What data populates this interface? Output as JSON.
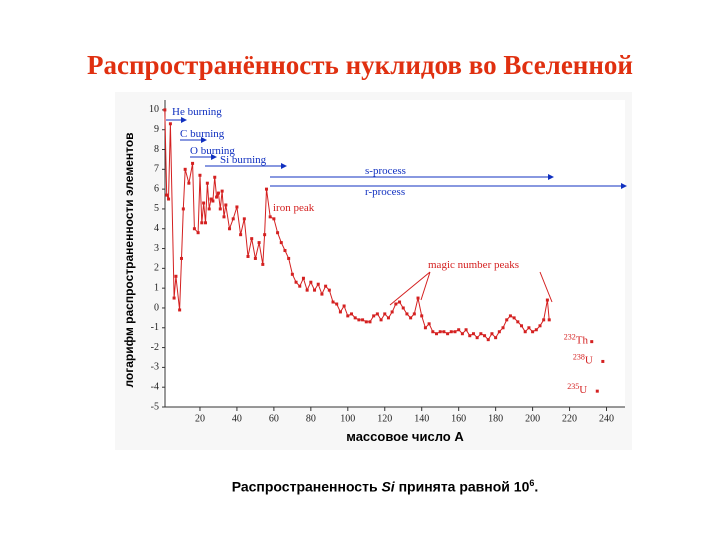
{
  "title": "Распространённость нуклидов во Вселенной",
  "chart_data": {
    "type": "line",
    "xlabel": "массовое число A",
    "ylabel": "логарифм распространенности элементов",
    "color": "#d42020",
    "xlim": [
      0,
      250
    ],
    "ylim": [
      -5,
      10.5
    ],
    "xticks": [
      20,
      40,
      60,
      80,
      100,
      120,
      140,
      160,
      180,
      200,
      220,
      240
    ],
    "yticks": [
      -5,
      -4,
      -3,
      -2,
      -1,
      0,
      1,
      2,
      3,
      4,
      5,
      6,
      7,
      8,
      9,
      10
    ],
    "x": [
      1,
      2,
      3,
      4,
      6,
      7,
      9,
      10,
      11,
      12,
      14,
      16,
      17,
      19,
      20,
      21,
      22,
      23,
      24,
      25,
      26,
      27,
      28,
      29,
      30,
      31,
      32,
      33,
      34,
      36,
      38,
      40,
      42,
      44,
      46,
      48,
      50,
      52,
      54,
      55,
      56,
      58,
      60,
      62,
      64,
      66,
      68,
      70,
      72,
      74,
      76,
      78,
      80,
      82,
      84,
      86,
      88,
      90,
      92,
      94,
      96,
      98,
      100,
      102,
      104,
      106,
      108,
      110,
      112,
      114,
      116,
      118,
      120,
      122,
      124,
      126,
      128,
      130,
      132,
      134,
      136,
      138,
      140,
      142,
      144,
      146,
      148,
      150,
      152,
      154,
      156,
      158,
      160,
      162,
      164,
      166,
      168,
      170,
      172,
      174,
      176,
      178,
      180,
      182,
      184,
      186,
      188,
      190,
      192,
      194,
      196,
      198,
      200,
      202,
      204,
      206,
      208,
      209
    ],
    "values": [
      10,
      5.7,
      5.5,
      9.3,
      0.5,
      1.6,
      -0.1,
      2.5,
      5,
      7,
      6.3,
      7.3,
      4,
      3.8,
      6.7,
      4.3,
      5.3,
      4.3,
      6.3,
      5,
      5.5,
      5.4,
      6.6,
      5.6,
      5.8,
      5,
      5.9,
      4.6,
      5.2,
      4,
      4.5,
      5.1,
      3.7,
      4.5,
      2.6,
      3.5,
      2.5,
      3.3,
      2.2,
      3.7,
      6,
      4.6,
      4.5,
      3.8,
      3.3,
      2.9,
      2.5,
      1.7,
      1.3,
      1.1,
      1.5,
      0.9,
      1.3,
      0.9,
      1.2,
      0.7,
      1.1,
      0.9,
      0.3,
      0.2,
      -0.2,
      0.1,
      -0.4,
      -0.3,
      -0.5,
      -0.6,
      -0.6,
      -0.7,
      -0.7,
      -0.4,
      -0.3,
      -0.6,
      -0.3,
      -0.5,
      -0.2,
      0.2,
      0.3,
      0,
      -0.3,
      -0.5,
      -0.3,
      0.5,
      -0.4,
      -1,
      -0.8,
      -1.2,
      -1.3,
      -1.2,
      -1.2,
      -1.3,
      -1.2,
      -1.2,
      -1.1,
      -1.3,
      -1.1,
      -1.4,
      -1.3,
      -1.5,
      -1.3,
      -1.4,
      -1.6,
      -1.3,
      -1.5,
      -1.2,
      -1,
      -0.6,
      -0.4,
      -0.5,
      -0.7,
      -0.9,
      -1.2,
      -1,
      -1.2,
      -1.1,
      -0.9,
      -0.6,
      0.4,
      -0.6
    ],
    "isotopes": [
      {
        "mass": "232",
        "symbol": "Th",
        "x": 232,
        "value": -1.7
      },
      {
        "mass": "238",
        "symbol": "U",
        "x": 238,
        "value": -2.7
      },
      {
        "mass": "235",
        "symbol": "U",
        "x": 235,
        "value": -4.2
      }
    ],
    "annotations": {
      "he": "He burning",
      "c": "C burning",
      "o": "O burning",
      "si": "Si burning",
      "s": "s-process",
      "r": "r-process",
      "iron": "iron peak",
      "magic": "magic number peaks"
    }
  },
  "footnote": {
    "before": "Распространенность ",
    "element": "Si",
    "middle": " принята равной 10",
    "exponent": "6",
    "after": "."
  }
}
